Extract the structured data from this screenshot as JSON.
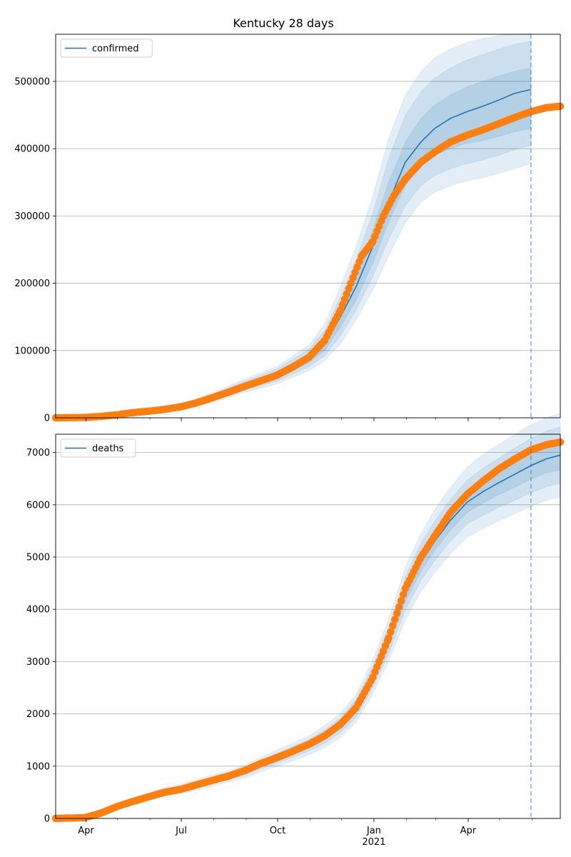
{
  "chart_data": {
    "title": "Kentucky 28 days",
    "type": "line",
    "x_ticks": [
      {
        "date": "2020-04-01",
        "label": "Apr",
        "sub": ""
      },
      {
        "date": "2020-07-01",
        "label": "Jul",
        "sub": ""
      },
      {
        "date": "2020-10-01",
        "label": "Oct",
        "sub": ""
      },
      {
        "date": "2021-01-01",
        "label": "Jan",
        "sub": "2021"
      },
      {
        "date": "2021-04-01",
        "label": "Apr",
        "sub": ""
      }
    ],
    "x_range": [
      "2020-03-03",
      "2021-06-28"
    ],
    "forecast_start": "2021-05-31",
    "grid": "horizontal",
    "colors": {
      "model": "#1f77b4",
      "observed": "#ff7f0e",
      "band": "#1f77b4"
    },
    "panels": [
      {
        "legend": "confirmed",
        "legend_position": "upper-left",
        "ylim": [
          0,
          570000
        ],
        "yticks": [
          0,
          100000,
          200000,
          300000,
          400000,
          500000
        ],
        "model": [
          [
            "2020-03-03",
            0
          ],
          [
            "2020-04-15",
            2000
          ],
          [
            "2020-05-15",
            7000
          ],
          [
            "2020-06-15",
            12000
          ],
          [
            "2020-07-01",
            17000
          ],
          [
            "2020-07-31",
            30000
          ],
          [
            "2020-08-31",
            48000
          ],
          [
            "2020-09-30",
            63000
          ],
          [
            "2020-10-31",
            88000
          ],
          [
            "2020-11-15",
            110000
          ],
          [
            "2020-11-30",
            150000
          ],
          [
            "2020-12-15",
            195000
          ],
          [
            "2020-12-31",
            255000
          ],
          [
            "2021-01-15",
            320000
          ],
          [
            "2021-01-31",
            380000
          ],
          [
            "2021-02-15",
            410000
          ],
          [
            "2021-02-28",
            430000
          ],
          [
            "2021-03-15",
            445000
          ],
          [
            "2021-03-31",
            455000
          ],
          [
            "2021-04-15",
            463000
          ],
          [
            "2021-04-30",
            472000
          ],
          [
            "2021-05-15",
            482000
          ],
          [
            "2021-05-31",
            488000
          ]
        ],
        "band_50": [
          [
            0,
            0
          ],
          [
            1800,
            2200
          ],
          [
            6500,
            7500
          ],
          [
            11000,
            13000
          ],
          [
            15500,
            18500
          ],
          [
            27000,
            33000
          ],
          [
            44000,
            52000
          ],
          [
            58000,
            68000
          ],
          [
            82000,
            95000
          ],
          [
            100000,
            120000
          ],
          [
            135000,
            165000
          ],
          [
            175000,
            215000
          ],
          [
            230000,
            280000
          ],
          [
            290000,
            350000
          ],
          [
            345000,
            410000
          ],
          [
            375000,
            445000
          ],
          [
            390000,
            465000
          ],
          [
            400000,
            480000
          ],
          [
            408000,
            492000
          ],
          [
            412000,
            500000
          ],
          [
            418000,
            508000
          ],
          [
            425000,
            515000
          ],
          [
            430000,
            520000
          ]
        ],
        "band_80": [
          [
            0,
            0
          ],
          [
            1500,
            2500
          ],
          [
            6000,
            8000
          ],
          [
            10000,
            14000
          ],
          [
            14500,
            19500
          ],
          [
            25000,
            35000
          ],
          [
            41000,
            55000
          ],
          [
            54000,
            72000
          ],
          [
            76000,
            102000
          ],
          [
            92000,
            130000
          ],
          [
            122000,
            180000
          ],
          [
            160000,
            235000
          ],
          [
            210000,
            305000
          ],
          [
            265000,
            385000
          ],
          [
            315000,
            450000
          ],
          [
            345000,
            485000
          ],
          [
            360000,
            505000
          ],
          [
            370000,
            520000
          ],
          [
            378000,
            532000
          ],
          [
            383000,
            540000
          ],
          [
            390000,
            548000
          ],
          [
            398000,
            555000
          ],
          [
            405000,
            560000
          ]
        ],
        "band_95": [
          [
            0,
            0
          ],
          [
            1200,
            2800
          ],
          [
            5500,
            8500
          ],
          [
            9000,
            15000
          ],
          [
            13500,
            20500
          ],
          [
            23000,
            37000
          ],
          [
            38000,
            58000
          ],
          [
            50000,
            76000
          ],
          [
            70000,
            108000
          ],
          [
            85000,
            140000
          ],
          [
            110000,
            195000
          ],
          [
            145000,
            255000
          ],
          [
            190000,
            330000
          ],
          [
            240000,
            415000
          ],
          [
            290000,
            480000
          ],
          [
            320000,
            515000
          ],
          [
            335000,
            535000
          ],
          [
            345000,
            548000
          ],
          [
            352000,
            558000
          ],
          [
            357000,
            564000
          ],
          [
            363000,
            568000
          ],
          [
            370000,
            570000
          ],
          [
            378000,
            572000
          ]
        ],
        "observed": [
          [
            "2020-03-03",
            0
          ],
          [
            "2020-04-01",
            500
          ],
          [
            "2020-04-15",
            2000
          ],
          [
            "2020-05-01",
            4500
          ],
          [
            "2020-05-15",
            7500
          ],
          [
            "2020-06-01",
            10000
          ],
          [
            "2020-06-15",
            12500
          ],
          [
            "2020-07-01",
            16500
          ],
          [
            "2020-07-15",
            22000
          ],
          [
            "2020-07-31",
            30000
          ],
          [
            "2020-08-15",
            38000
          ],
          [
            "2020-08-31",
            47000
          ],
          [
            "2020-09-15",
            55000
          ],
          [
            "2020-09-30",
            63000
          ],
          [
            "2020-10-15",
            75000
          ],
          [
            "2020-10-31",
            90000
          ],
          [
            "2020-11-15",
            115000
          ],
          [
            "2020-11-30",
            160000
          ],
          [
            "2020-12-10",
            200000
          ],
          [
            "2020-12-20",
            240000
          ],
          [
            "2020-12-31",
            262000
          ],
          [
            "2021-01-10",
            300000
          ],
          [
            "2021-01-20",
            330000
          ],
          [
            "2021-01-31",
            355000
          ],
          [
            "2021-02-15",
            380000
          ],
          [
            "2021-02-28",
            395000
          ],
          [
            "2021-03-15",
            410000
          ],
          [
            "2021-03-31",
            420000
          ],
          [
            "2021-04-15",
            428000
          ],
          [
            "2021-04-30",
            437000
          ],
          [
            "2021-05-15",
            446000
          ],
          [
            "2021-05-31",
            455000
          ],
          [
            "2021-06-15",
            461000
          ],
          [
            "2021-06-28",
            463000
          ]
        ]
      },
      {
        "legend": "deaths",
        "legend_position": "upper-left",
        "ylim": [
          0,
          7350
        ],
        "yticks": [
          0,
          1000,
          2000,
          3000,
          4000,
          5000,
          6000,
          7000
        ],
        "model": [
          [
            "2020-03-03",
            0
          ],
          [
            "2020-04-01",
            20
          ],
          [
            "2020-04-15",
            100
          ],
          [
            "2020-05-01",
            250
          ],
          [
            "2020-05-15",
            330
          ],
          [
            "2020-06-01",
            430
          ],
          [
            "2020-06-15",
            510
          ],
          [
            "2020-07-01",
            570
          ],
          [
            "2020-07-15",
            640
          ],
          [
            "2020-07-31",
            730
          ],
          [
            "2020-08-15",
            800
          ],
          [
            "2020-08-31",
            900
          ],
          [
            "2020-09-15",
            1030
          ],
          [
            "2020-09-30",
            1150
          ],
          [
            "2020-10-15",
            1270
          ],
          [
            "2020-10-31",
            1400
          ],
          [
            "2020-11-15",
            1570
          ],
          [
            "2020-11-30",
            1780
          ],
          [
            "2020-12-15",
            2100
          ],
          [
            "2020-12-31",
            2700
          ],
          [
            "2021-01-15",
            3400
          ],
          [
            "2021-01-31",
            4300
          ],
          [
            "2021-02-15",
            4900
          ],
          [
            "2021-02-28",
            5300
          ],
          [
            "2021-03-15",
            5700
          ],
          [
            "2021-03-31",
            6050
          ],
          [
            "2021-04-15",
            6250
          ],
          [
            "2021-04-30",
            6420
          ],
          [
            "2021-05-15",
            6580
          ],
          [
            "2021-05-31",
            6750
          ],
          [
            "2021-06-15",
            6880
          ],
          [
            "2021-06-28",
            6950
          ]
        ],
        "band_50": [
          [
            0,
            0
          ],
          [
            18,
            22
          ],
          [
            90,
            110
          ],
          [
            235,
            265
          ],
          [
            315,
            345
          ],
          [
            410,
            450
          ],
          [
            485,
            535
          ],
          [
            540,
            600
          ],
          [
            610,
            670
          ],
          [
            700,
            760
          ],
          [
            770,
            830
          ],
          [
            865,
            935
          ],
          [
            990,
            1070
          ],
          [
            1105,
            1195
          ],
          [
            1220,
            1320
          ],
          [
            1345,
            1455
          ],
          [
            1510,
            1630
          ],
          [
            1710,
            1850
          ],
          [
            2020,
            2200
          ],
          [
            2600,
            2820
          ],
          [
            3280,
            3540
          ],
          [
            4150,
            4470
          ],
          [
            4730,
            5090
          ],
          [
            5120,
            5500
          ],
          [
            5510,
            5900
          ],
          [
            5850,
            6260
          ],
          [
            6030,
            6470
          ],
          [
            6190,
            6650
          ],
          [
            6330,
            6830
          ],
          [
            6490,
            7010
          ],
          [
            6610,
            7150
          ],
          [
            6670,
            7230
          ]
        ],
        "band_80": [
          [
            0,
            0
          ],
          [
            15,
            25
          ],
          [
            80,
            120
          ],
          [
            220,
            280
          ],
          [
            300,
            360
          ],
          [
            390,
            470
          ],
          [
            460,
            560
          ],
          [
            515,
            625
          ],
          [
            580,
            700
          ],
          [
            665,
            795
          ],
          [
            735,
            865
          ],
          [
            825,
            975
          ],
          [
            945,
            1115
          ],
          [
            1055,
            1245
          ],
          [
            1165,
            1375
          ],
          [
            1285,
            1515
          ],
          [
            1440,
            1700
          ],
          [
            1640,
            1920
          ],
          [
            1940,
            2280
          ],
          [
            2500,
            2920
          ],
          [
            3150,
            3660
          ],
          [
            3990,
            4620
          ],
          [
            4550,
            5270
          ],
          [
            4930,
            5690
          ],
          [
            5300,
            6100
          ],
          [
            5630,
            6470
          ],
          [
            5800,
            6700
          ],
          [
            5950,
            6890
          ],
          [
            6080,
            7080
          ],
          [
            6230,
            7270
          ],
          [
            6350,
            7410
          ],
          [
            6410,
            7490
          ]
        ],
        "band_95": [
          [
            0,
            0
          ],
          [
            12,
            28
          ],
          [
            70,
            130
          ],
          [
            200,
            300
          ],
          [
            280,
            380
          ],
          [
            365,
            495
          ],
          [
            430,
            590
          ],
          [
            480,
            660
          ],
          [
            540,
            740
          ],
          [
            620,
            840
          ],
          [
            690,
            910
          ],
          [
            775,
            1025
          ],
          [
            890,
            1170
          ],
          [
            995,
            1305
          ],
          [
            1100,
            1440
          ],
          [
            1215,
            1585
          ],
          [
            1360,
            1780
          ],
          [
            1550,
            2010
          ],
          [
            1840,
            2380
          ],
          [
            2380,
            3040
          ],
          [
            3000,
            3810
          ],
          [
            3800,
            4800
          ],
          [
            4340,
            5460
          ],
          [
            4700,
            5900
          ],
          [
            5060,
            6340
          ],
          [
            5380,
            6720
          ],
          [
            5540,
            6960
          ],
          [
            5690,
            7150
          ],
          [
            5820,
            7340
          ],
          [
            5970,
            7530
          ],
          [
            6090,
            7670
          ],
          [
            6150,
            7750
          ]
        ],
        "observed": [
          [
            "2020-03-03",
            0
          ],
          [
            "2020-03-31",
            15
          ],
          [
            "2020-04-15",
            100
          ],
          [
            "2020-05-01",
            230
          ],
          [
            "2020-05-15",
            320
          ],
          [
            "2020-06-01",
            420
          ],
          [
            "2020-06-15",
            500
          ],
          [
            "2020-07-01",
            560
          ],
          [
            "2020-07-15",
            640
          ],
          [
            "2020-07-31",
            730
          ],
          [
            "2020-08-15",
            810
          ],
          [
            "2020-08-31",
            920
          ],
          [
            "2020-09-15",
            1050
          ],
          [
            "2020-09-30",
            1160
          ],
          [
            "2020-10-15",
            1280
          ],
          [
            "2020-10-31",
            1420
          ],
          [
            "2020-11-15",
            1580
          ],
          [
            "2020-11-30",
            1800
          ],
          [
            "2020-12-15",
            2120
          ],
          [
            "2020-12-31",
            2700
          ],
          [
            "2021-01-15",
            3450
          ],
          [
            "2021-01-31",
            4400
          ],
          [
            "2021-02-15",
            5000
          ],
          [
            "2021-02-28",
            5400
          ],
          [
            "2021-03-15",
            5850
          ],
          [
            "2021-03-31",
            6200
          ],
          [
            "2021-04-15",
            6450
          ],
          [
            "2021-04-30",
            6680
          ],
          [
            "2021-05-15",
            6870
          ],
          [
            "2021-05-31",
            7050
          ],
          [
            "2021-06-15",
            7150
          ],
          [
            "2021-06-28",
            7200
          ]
        ]
      }
    ]
  }
}
